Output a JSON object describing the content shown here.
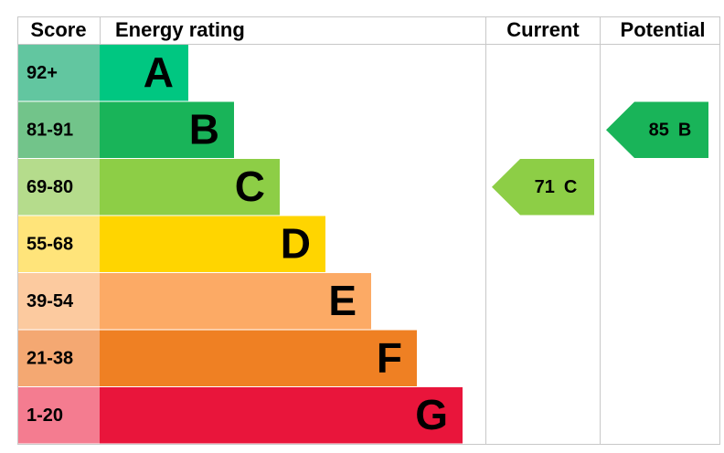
{
  "header": {
    "score": "Score",
    "rating": "Energy rating",
    "current": "Current",
    "potential": "Potential"
  },
  "bands": [
    {
      "score": "92+",
      "letter": "A",
      "color": "#00c781",
      "score_color": "#62c6a0"
    },
    {
      "score": "81-91",
      "letter": "B",
      "color": "#19b459",
      "score_color": "#72c48a"
    },
    {
      "score": "69-80",
      "letter": "C",
      "color": "#8dce46",
      "score_color": "#b5dc8c"
    },
    {
      "score": "55-68",
      "letter": "D",
      "color": "#ffd500",
      "score_color": "#ffe47a"
    },
    {
      "score": "39-54",
      "letter": "E",
      "color": "#fcaa65",
      "score_color": "#fcca9f"
    },
    {
      "score": "21-38",
      "letter": "F",
      "color": "#ef8023",
      "score_color": "#f4a872"
    },
    {
      "score": "1-20",
      "letter": "G",
      "color": "#e9153b",
      "score_color": "#f47c90"
    }
  ],
  "current": {
    "value": 71,
    "band": "C"
  },
  "potential": {
    "value": 85,
    "band": "B"
  }
}
